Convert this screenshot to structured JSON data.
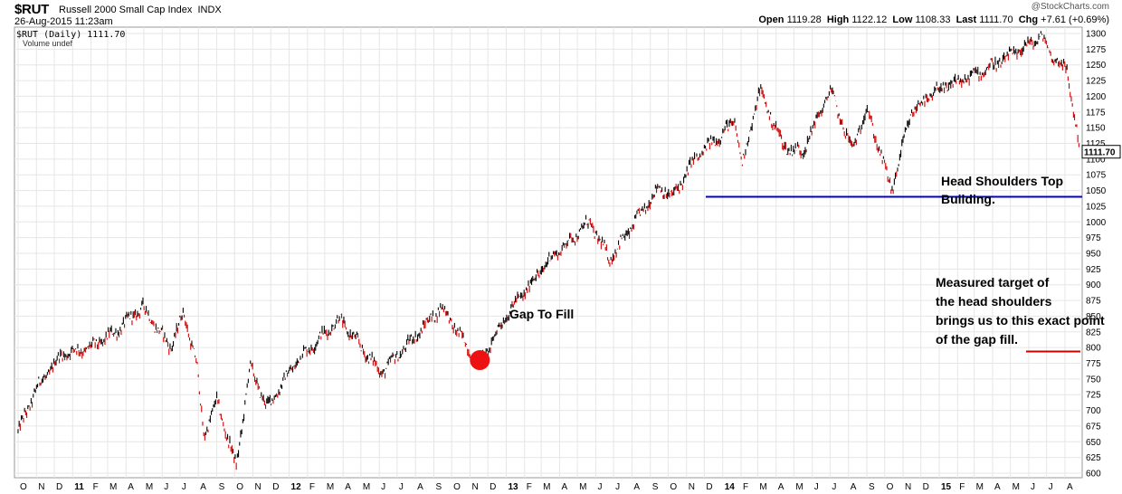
{
  "header": {
    "symbol": "$RUT",
    "name": "Russell 2000 Small Cap Index",
    "exchange": "INDX",
    "datetime": "26-Aug-2015 11:23am",
    "open_label": "Open",
    "open": "1119.28",
    "high_label": "High",
    "high": "1122.12",
    "low_label": "Low",
    "low": "1108.33",
    "last_label": "Last",
    "last": "1111.70",
    "chg_label": "Chg",
    "chg": "+7.61 (+0.69%)",
    "logo": "@StockCharts.com"
  },
  "legend": {
    "price": "$RUT (Daily) 1111.70",
    "volume": "Volume undef"
  },
  "colors": {
    "up_bar": "#000000",
    "down_bar": "#cc0000",
    "neckline": "#0000cc",
    "target_line": "#cc0000",
    "gap_marker": "#ee1111",
    "grid": "#e6e6e6"
  },
  "chart_data": {
    "type": "line",
    "title": "Russell 2000 Small Cap Index",
    "ylim": [
      600,
      1300
    ],
    "yticks": [
      600,
      625,
      650,
      675,
      700,
      725,
      750,
      775,
      800,
      825,
      850,
      875,
      900,
      925,
      950,
      975,
      1000,
      1025,
      1050,
      1075,
      1100,
      1125,
      1150,
      1175,
      1200,
      1225,
      1250,
      1275,
      1300
    ],
    "last_value_label": "1111.70",
    "xticks": [
      "O",
      "N",
      "D",
      "11",
      "F",
      "M",
      "A",
      "M",
      "J",
      "J",
      "A",
      "S",
      "O",
      "N",
      "D",
      "12",
      "F",
      "M",
      "A",
      "M",
      "J",
      "J",
      "A",
      "S",
      "O",
      "N",
      "D",
      "13",
      "F",
      "M",
      "A",
      "M",
      "J",
      "J",
      "A",
      "S",
      "O",
      "N",
      "D",
      "14",
      "F",
      "M",
      "A",
      "M",
      "J",
      "J",
      "A",
      "S",
      "O",
      "N",
      "D",
      "15",
      "F",
      "M",
      "A",
      "M",
      "J",
      "J",
      "A"
    ],
    "year_ticks": [
      "11",
      "12",
      "13",
      "14",
      "15"
    ],
    "x_range": [
      "2010-10",
      "2015-08"
    ],
    "series": [
      {
        "x": [
          "2010-10-01",
          "2010-11-01",
          "2010-12-15",
          "2011-02-01",
          "2011-03-15",
          "2011-04-29",
          "2011-06-15",
          "2011-07-07",
          "2011-07-29",
          "2011-08-10",
          "2011-09-01",
          "2011-10-04",
          "2011-10-27",
          "2011-11-25",
          "2012-01-15",
          "2012-03-26",
          "2012-06-04",
          "2012-07-15",
          "2012-09-14",
          "2012-10-25",
          "2012-11-16",
          "2012-12-31",
          "2013-03-15",
          "2013-05-22",
          "2013-06-24",
          "2013-09-15",
          "2013-10-09",
          "2013-11-15",
          "2014-01-22",
          "2014-02-03",
          "2014-03-04",
          "2014-04-14",
          "2014-05-15",
          "2014-07-01",
          "2014-08-07",
          "2014-09-01",
          "2014-10-13",
          "2014-11-15",
          "2014-12-31",
          "2015-02-20",
          "2015-04-15",
          "2015-06-23",
          "2015-07-10",
          "2015-08-05",
          "2015-08-20",
          "2015-08-26"
        ],
        "values": [
          665,
          735,
          790,
          800,
          825,
          865,
          800,
          855,
          775,
          660,
          715,
          610,
          770,
          705,
          780,
          845,
          760,
          800,
          865,
          805,
          770,
          850,
          940,
          1000,
          940,
          1055,
          1040,
          1100,
          1160,
          1090,
          1210,
          1120,
          1110,
          1210,
          1115,
          1180,
          1050,
          1175,
          1210,
          1230,
          1255,
          1295,
          1265,
          1240,
          1150,
          1112
        ]
      }
    ],
    "annotations": {
      "gap_label": "Gap To Fill",
      "neckline_level": 1040,
      "neckline_note": "Head Shoulders Top Building.",
      "target_level": 775,
      "target_note": "Measured target of the head shoulders brings us to this exact point of the gap fill."
    }
  }
}
